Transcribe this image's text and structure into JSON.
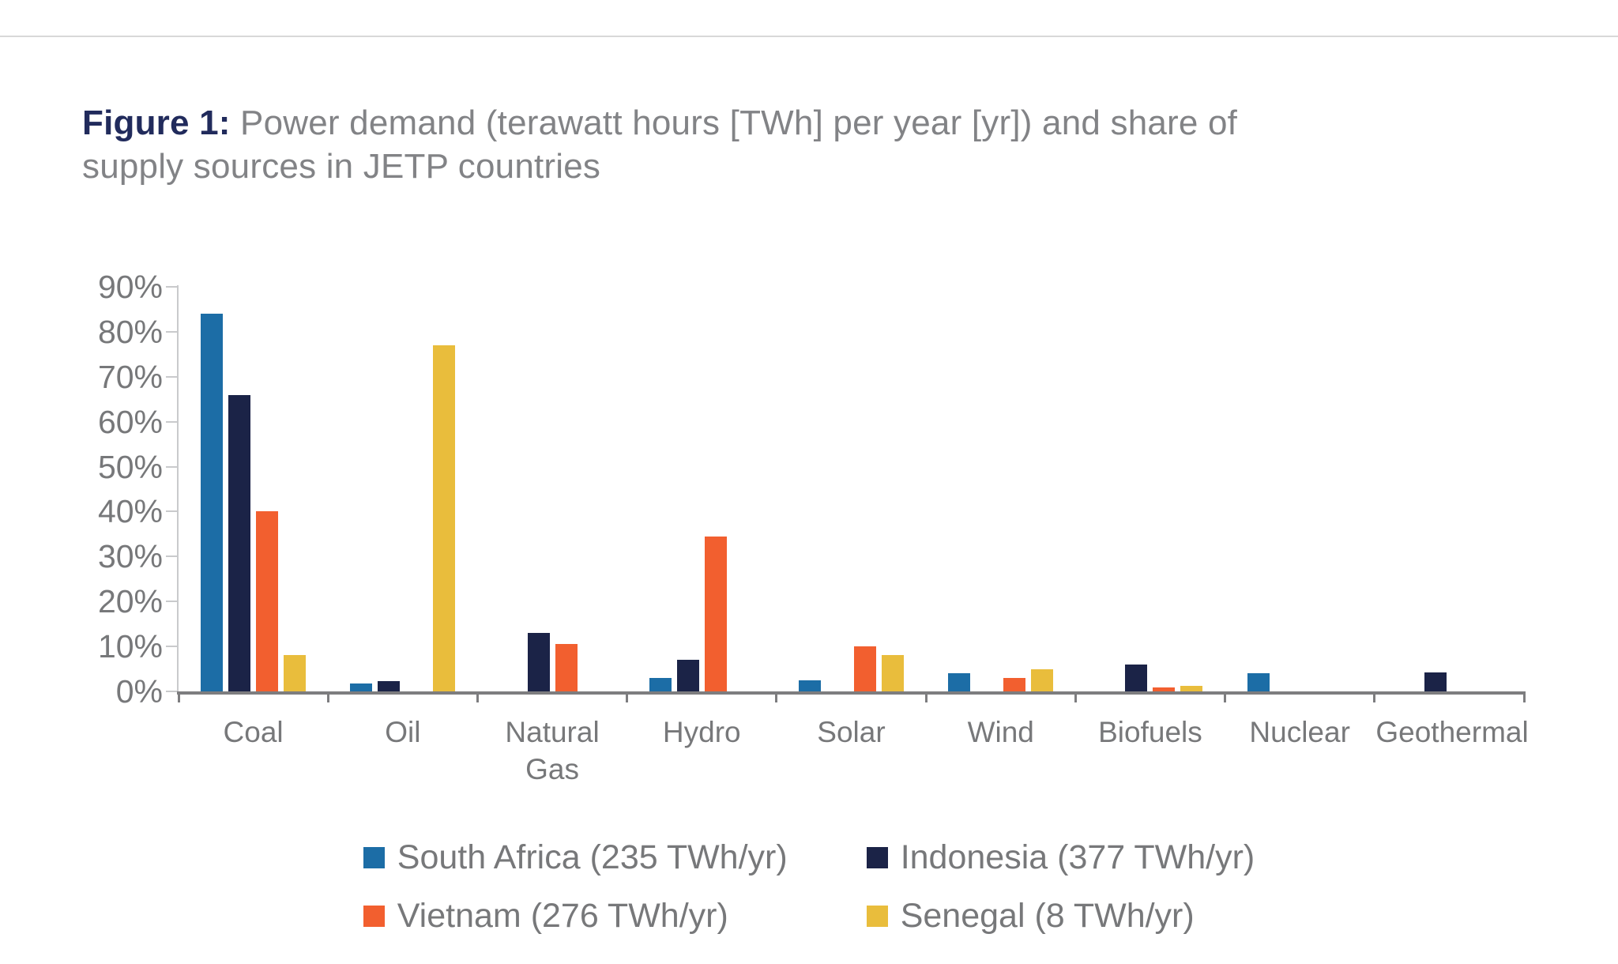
{
  "page": {
    "title_prefix": "Figure 1:",
    "title_line1": " Power demand (terawatt hours [TWh] per year [yr]) and share of",
    "title_line2": "supply sources in JETP countries"
  },
  "chart_data": {
    "type": "bar",
    "title": "Figure 1: Power demand (terawatt hours [TWh] per year [yr]) and share of supply sources in JETP countries",
    "categories": [
      "Coal",
      "Oil",
      "Natural Gas",
      "Hydro",
      "Solar",
      "Wind",
      "Biofuels",
      "Nuclear",
      "Geothermal"
    ],
    "series": [
      {
        "name": "South Africa (235 TWh/yr)",
        "color": "#1c6da6",
        "values": [
          84,
          1.8,
          0,
          3,
          2.5,
          4,
          0,
          4,
          0
        ]
      },
      {
        "name": "Indonesia (377 TWh/yr)",
        "color": "#1b2347",
        "values": [
          66,
          2.2,
          13,
          7,
          0,
          0,
          6,
          0,
          4.2
        ]
      },
      {
        "name": "Vietnam (276 TWh/yr)",
        "color": "#f25f2f",
        "values": [
          40,
          0,
          10.5,
          34.5,
          10,
          3,
          0.8,
          0,
          0
        ]
      },
      {
        "name": "Senegal (8 TWh/yr)",
        "color": "#e9bd3c",
        "values": [
          8,
          77,
          0,
          0,
          8,
          5,
          1.3,
          0,
          0
        ]
      }
    ],
    "xlabel": "",
    "ylabel": "",
    "ylim": [
      0,
      90
    ],
    "yticks": [
      "0%",
      "10%",
      "20%",
      "30%",
      "40%",
      "50%",
      "60%",
      "70%",
      "80%",
      "90%"
    ],
    "unit": "percent-share",
    "grid": false,
    "legend_position": "bottom",
    "axis_color": "#7d7d7f",
    "minor_tick_color": "#c9cacc"
  }
}
